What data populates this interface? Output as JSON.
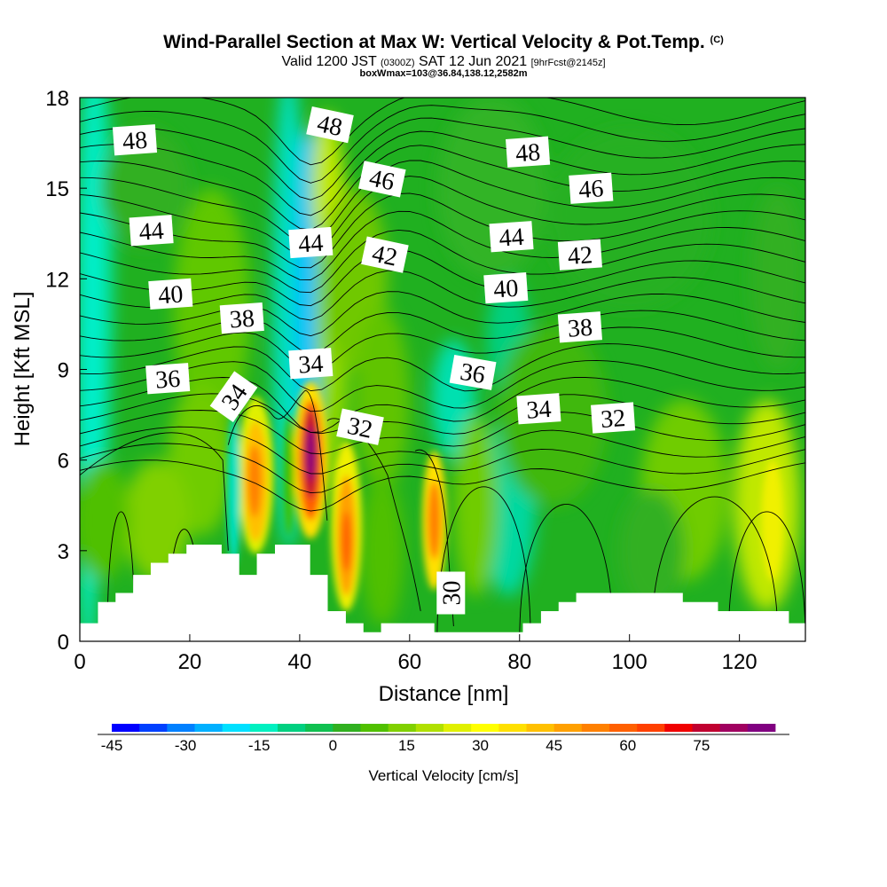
{
  "header": {
    "title": "Wind-Parallel Section at Max W: Vertical Velocity & Pot.Temp.",
    "title_suffix": "(C)",
    "valid_a": "Valid 1200 JST",
    "valid_b": "(0300Z)",
    "valid_c": "SAT 12 Jun 2021",
    "valid_d": "[9hrFcst@2145z]",
    "box_info": "boxWmax=103@36.84,138.12,2582m"
  },
  "chart_data": {
    "type": "heatmap",
    "xlabel": "Distance [nm]",
    "ylabel": "Height [Kft MSL]",
    "xlim": [
      0,
      132
    ],
    "ylim": [
      0,
      18
    ],
    "xticks": [
      "0",
      "20",
      "40",
      "60",
      "80",
      "100",
      "120"
    ],
    "yticks": [
      "0",
      "3",
      "6",
      "9",
      "12",
      "15",
      "18"
    ],
    "colorbar": {
      "label": "Vertical Velocity [cm/s]",
      "range": [
        -45,
        90
      ],
      "tick_labels": [
        "-45",
        "-30",
        "-15",
        "0",
        "15",
        "30",
        "45",
        "60",
        "75"
      ],
      "colors": [
        "#0000ff",
        "#0040ff",
        "#0080ff",
        "#00b0ff",
        "#00e0ff",
        "#00f0c0",
        "#00d080",
        "#10c050",
        "#30b020",
        "#50c000",
        "#80d000",
        "#b0e000",
        "#e0f000",
        "#ffff00",
        "#ffe000",
        "#ffc000",
        "#ffa000",
        "#ff8000",
        "#ff6000",
        "#ff4000",
        "#f00000",
        "#c00030",
        "#a00060",
        "#800080"
      ]
    },
    "theta_contour_labels": [
      {
        "value": "48",
        "x": 10,
        "y": 16.6
      },
      {
        "value": "48",
        "x": 45.5,
        "y": 17.1
      },
      {
        "value": "48",
        "x": 81.5,
        "y": 16.2
      },
      {
        "value": "46",
        "x": 55,
        "y": 15.3
      },
      {
        "value": "46",
        "x": 93,
        "y": 15.0
      },
      {
        "value": "44",
        "x": 13,
        "y": 13.6
      },
      {
        "value": "44",
        "x": 42,
        "y": 13.2
      },
      {
        "value": "44",
        "x": 78.5,
        "y": 13.4
      },
      {
        "value": "42",
        "x": 55.5,
        "y": 12.8
      },
      {
        "value": "42",
        "x": 91,
        "y": 12.8
      },
      {
        "value": "40",
        "x": 16.5,
        "y": 11.5
      },
      {
        "value": "40",
        "x": 77.5,
        "y": 11.7
      },
      {
        "value": "38",
        "x": 29.5,
        "y": 10.7
      },
      {
        "value": "38",
        "x": 91,
        "y": 10.4
      },
      {
        "value": "36",
        "x": 16,
        "y": 8.7
      },
      {
        "value": "36",
        "x": 71.5,
        "y": 8.9
      },
      {
        "value": "34",
        "x": 28,
        "y": 8.1
      },
      {
        "value": "34",
        "x": 42,
        "y": 9.2
      },
      {
        "value": "34",
        "x": 83.5,
        "y": 7.7
      },
      {
        "value": "32",
        "x": 51,
        "y": 7.1
      },
      {
        "value": "32",
        "x": 97,
        "y": 7.4
      },
      {
        "value": "30",
        "x": 67.5,
        "y": 1.6
      }
    ],
    "terrain_height_kft": [
      {
        "x": 0,
        "h": 0.6
      },
      {
        "x": 3.3,
        "h": 1.3
      },
      {
        "x": 6.5,
        "h": 1.6
      },
      {
        "x": 9.7,
        "h": 2.2
      },
      {
        "x": 12.9,
        "h": 2.6
      },
      {
        "x": 16.1,
        "h": 2.9
      },
      {
        "x": 19.4,
        "h": 3.2
      },
      {
        "x": 25.8,
        "h": 2.9
      },
      {
        "x": 29,
        "h": 2.2
      },
      {
        "x": 32.2,
        "h": 2.9
      },
      {
        "x": 35.5,
        "h": 3.2
      },
      {
        "x": 41.9,
        "h": 2.2
      },
      {
        "x": 45.1,
        "h": 1.0
      },
      {
        "x": 48.4,
        "h": 0.6
      },
      {
        "x": 51.6,
        "h": 0.3
      },
      {
        "x": 54.8,
        "h": 0.6
      },
      {
        "x": 64.5,
        "h": 0.3
      },
      {
        "x": 80.6,
        "h": 0.6
      },
      {
        "x": 83.9,
        "h": 1.0
      },
      {
        "x": 87.1,
        "h": 1.3
      },
      {
        "x": 90.3,
        "h": 1.6
      },
      {
        "x": 109.7,
        "h": 1.3
      },
      {
        "x": 116.1,
        "h": 1.0
      },
      {
        "x": 129,
        "h": 0.6
      },
      {
        "x": 132,
        "h": 0.6
      }
    ]
  }
}
